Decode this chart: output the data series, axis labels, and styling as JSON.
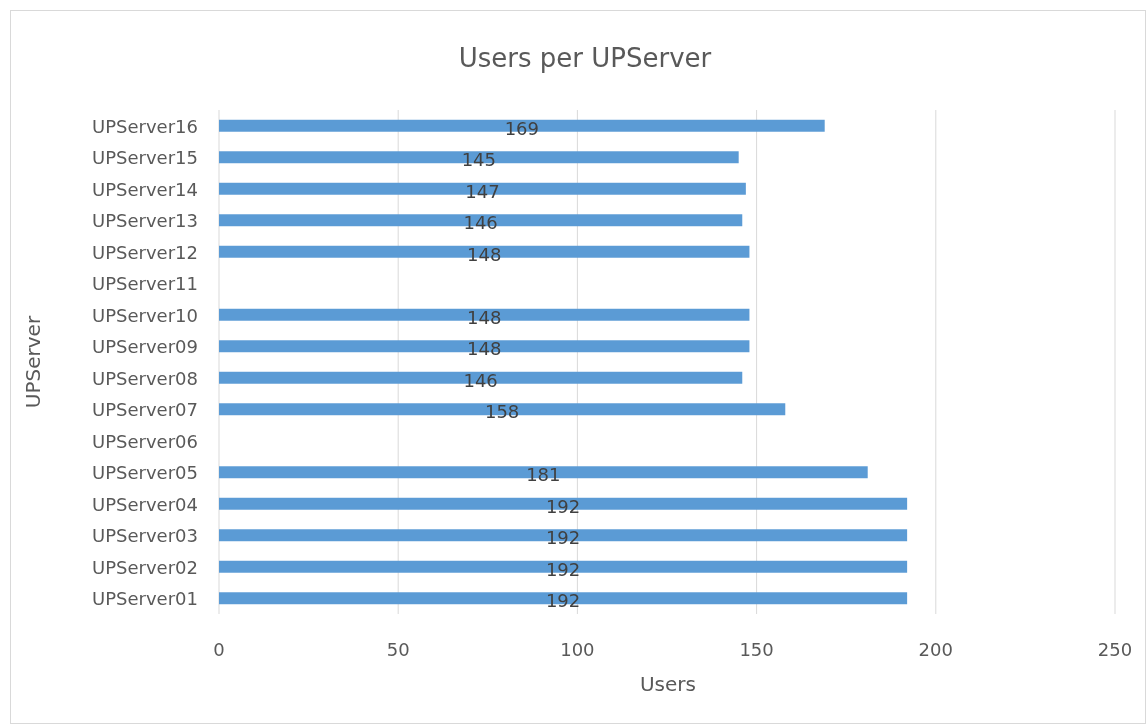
{
  "chart_data": {
    "type": "bar",
    "orientation": "horizontal",
    "title": "Users per UPServer",
    "xlabel": "Users",
    "ylabel": "UPServer",
    "categories": [
      "UPServer16",
      "UPServer15",
      "UPServer14",
      "UPServer13",
      "UPServer12",
      "UPServer11",
      "UPServer10",
      "UPServer09",
      "UPServer08",
      "UPServer07",
      "UPServer06",
      "UPServer05",
      "UPServer04",
      "UPServer03",
      "UPServer02",
      "UPServer01"
    ],
    "values": [
      169,
      145,
      147,
      146,
      148,
      null,
      148,
      148,
      146,
      158,
      null,
      181,
      192,
      192,
      192,
      192
    ],
    "color": "#5b9bd5",
    "xlim": [
      0,
      250
    ],
    "xticks": [
      0,
      50,
      100,
      150,
      200,
      250
    ],
    "grid": "x",
    "data_labels": true
  }
}
